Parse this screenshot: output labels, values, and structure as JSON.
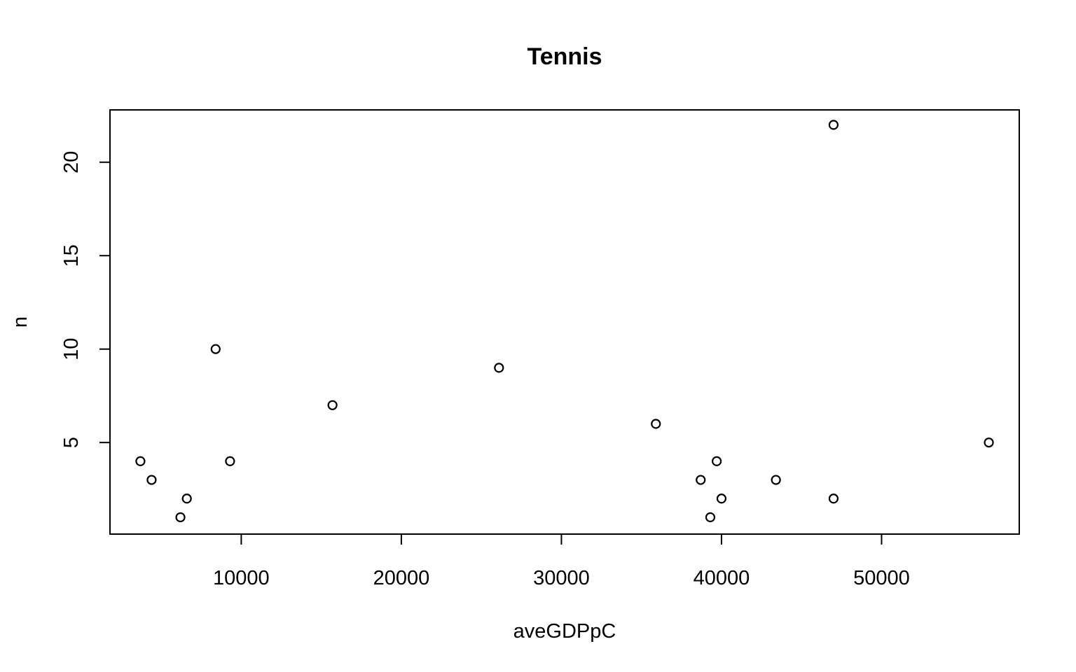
{
  "chart_data": {
    "type": "scatter",
    "title": "Tennis",
    "xlabel": "aveGDPpC",
    "ylabel": "n",
    "xlim": [
      1800,
      58600
    ],
    "ylim": [
      0.1,
      22.8
    ],
    "xticks": [
      10000,
      20000,
      30000,
      40000,
      50000
    ],
    "xtick_labels": [
      "10000",
      "20000",
      "30000",
      "40000",
      "50000"
    ],
    "yticks": [
      5,
      10,
      15,
      20
    ],
    "ytick_labels": [
      "5",
      "10",
      "15",
      "20"
    ],
    "grid": false,
    "points": [
      {
        "x": 3700,
        "y": 4
      },
      {
        "x": 4400,
        "y": 3
      },
      {
        "x": 6200,
        "y": 1
      },
      {
        "x": 6600,
        "y": 2
      },
      {
        "x": 8400,
        "y": 10
      },
      {
        "x": 9300,
        "y": 4
      },
      {
        "x": 15700,
        "y": 7
      },
      {
        "x": 26100,
        "y": 9
      },
      {
        "x": 35900,
        "y": 6
      },
      {
        "x": 38700,
        "y": 3
      },
      {
        "x": 39300,
        "y": 1
      },
      {
        "x": 39700,
        "y": 4
      },
      {
        "x": 40000,
        "y": 2
      },
      {
        "x": 43400,
        "y": 3
      },
      {
        "x": 47000,
        "y": 22
      },
      {
        "x": 47000,
        "y": 2
      },
      {
        "x": 56700,
        "y": 5
      }
    ]
  }
}
